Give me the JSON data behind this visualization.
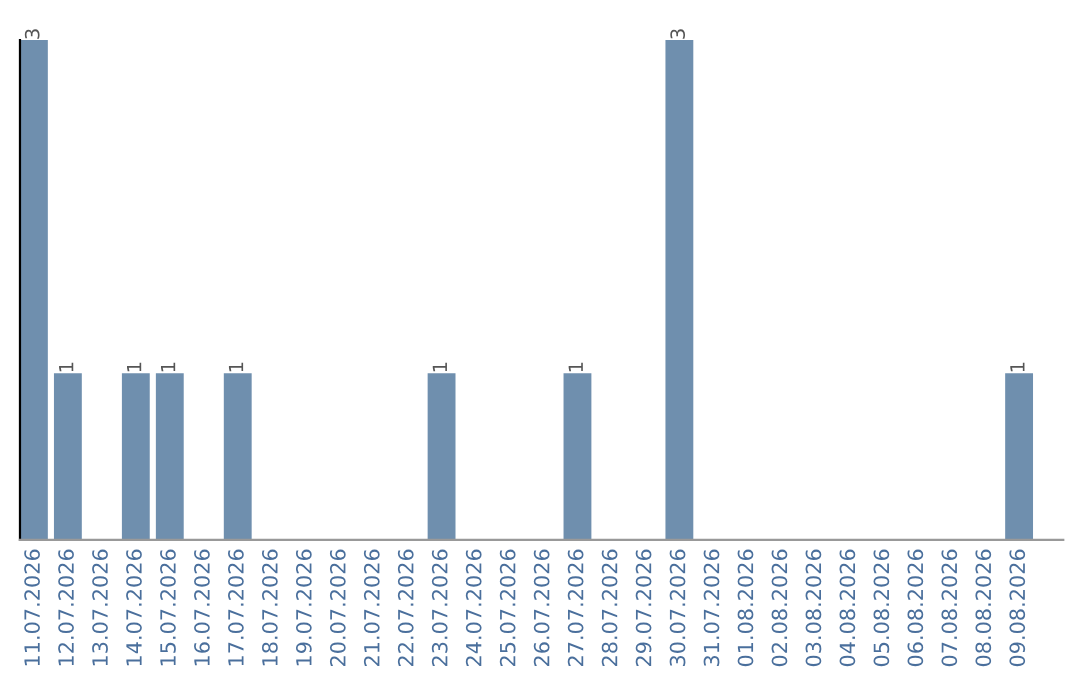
{
  "chart_data": {
    "type": "bar",
    "categories": [
      "11.07.2026",
      "12.07.2026",
      "13.07.2026",
      "14.07.2026",
      "15.07.2026",
      "16.07.2026",
      "17.07.2026",
      "18.07.2026",
      "19.07.2026",
      "20.07.2026",
      "21.07.2026",
      "22.07.2026",
      "23.07.2026",
      "24.07.2026",
      "25.07.2026",
      "26.07.2026",
      "27.07.2026",
      "28.07.2026",
      "29.07.2026",
      "30.07.2026",
      "31.07.2026",
      "01.08.2026",
      "02.08.2026",
      "03.08.2026",
      "04.08.2026",
      "05.08.2026",
      "06.08.2026",
      "07.08.2026",
      "08.08.2026",
      "09.08.2026"
    ],
    "values": [
      3,
      1,
      0,
      1,
      1,
      0,
      1,
      0,
      0,
      0,
      0,
      0,
      1,
      0,
      0,
      0,
      1,
      0,
      0,
      3,
      0,
      0,
      0,
      0,
      0,
      0,
      0,
      0,
      0,
      1
    ],
    "value_labels": [
      "3",
      "1",
      null,
      "1",
      "1",
      null,
      "1",
      null,
      null,
      null,
      null,
      null,
      "1",
      null,
      null,
      null,
      "1",
      null,
      null,
      "3",
      null,
      null,
      null,
      null,
      null,
      null,
      null,
      null,
      null,
      "1"
    ],
    "color": "#6f8fae",
    "tick_labels": "x",
    "grid": false,
    "legend": false
  }
}
